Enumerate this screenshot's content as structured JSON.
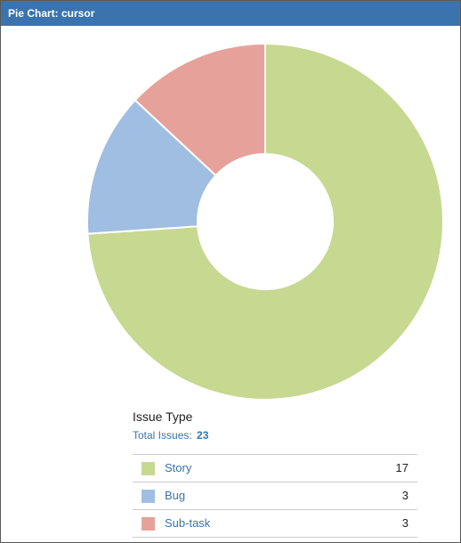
{
  "header": {
    "title": "Pie Chart: cursor"
  },
  "chart_data": {
    "type": "pie",
    "donut": true,
    "categories": [
      "Story",
      "Bug",
      "Sub-task"
    ],
    "values": [
      17,
      3,
      3
    ],
    "colors": [
      "#c7d891",
      "#a0bee2",
      "#e6a29a"
    ],
    "title": ""
  },
  "legend": {
    "title": "Issue Type",
    "total_label": "Total Issues:",
    "total_value": "23",
    "rows": [
      {
        "label": "Story",
        "count": "17",
        "color": "#c7d891"
      },
      {
        "label": "Bug",
        "count": "3",
        "color": "#a0bee2"
      },
      {
        "label": "Sub-task",
        "count": "3",
        "color": "#e6a29a"
      }
    ]
  }
}
